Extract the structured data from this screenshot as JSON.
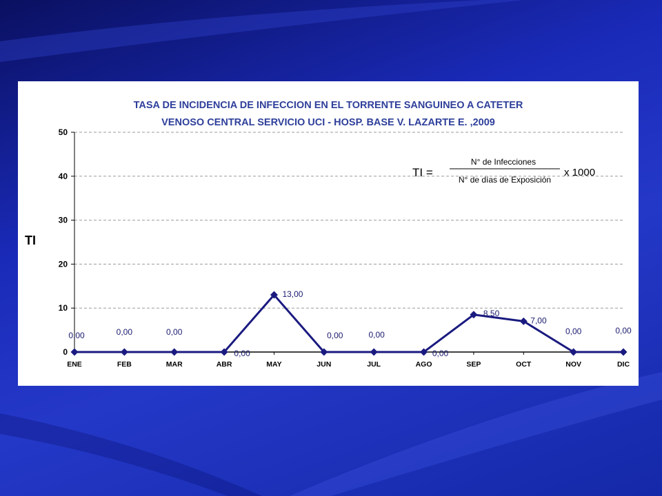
{
  "chart_data": {
    "type": "line",
    "title_lines": [
      "TASA DE INCIDENCIA  DE INFECCION EN EL TORRENTE SANGUINEO A CATETER",
      "VENOSO CENTRAL SERVICIO UCI - HOSP. BASE  V. LAZARTE E. ,2009"
    ],
    "ylabel": "TI",
    "xlabel": "",
    "ylim": [
      0,
      50
    ],
    "yticks": [
      0,
      10,
      20,
      30,
      40,
      50
    ],
    "grid": true,
    "categories": [
      "ENE",
      "FEB",
      "MAR",
      "ABR",
      "MAY",
      "JUN",
      "JUL",
      "AGO",
      "SEP",
      "OCT",
      "NOV",
      "DIC"
    ],
    "series": [
      {
        "values": [
          0,
          0,
          0,
          0,
          13,
          0,
          0,
          0,
          8.5,
          7,
          0,
          0
        ],
        "data_labels": [
          "0,00",
          "0,00",
          "0,00",
          "0,00",
          "13,00",
          "0,00",
          "0,00",
          "0,00",
          "8,50",
          "7,00",
          "0,00",
          "0,00"
        ],
        "color": "#1a1a80"
      }
    ],
    "formula": {
      "lhs": "TI =",
      "numerator": "N° de Infecciones",
      "denominator": "N° de días de Exposición",
      "multiplier": "x 1000"
    }
  },
  "colors": {
    "line": "#1a1a80",
    "title": "#2e3f9a",
    "background": "#1a2ab8",
    "panel": "#ffffff"
  }
}
